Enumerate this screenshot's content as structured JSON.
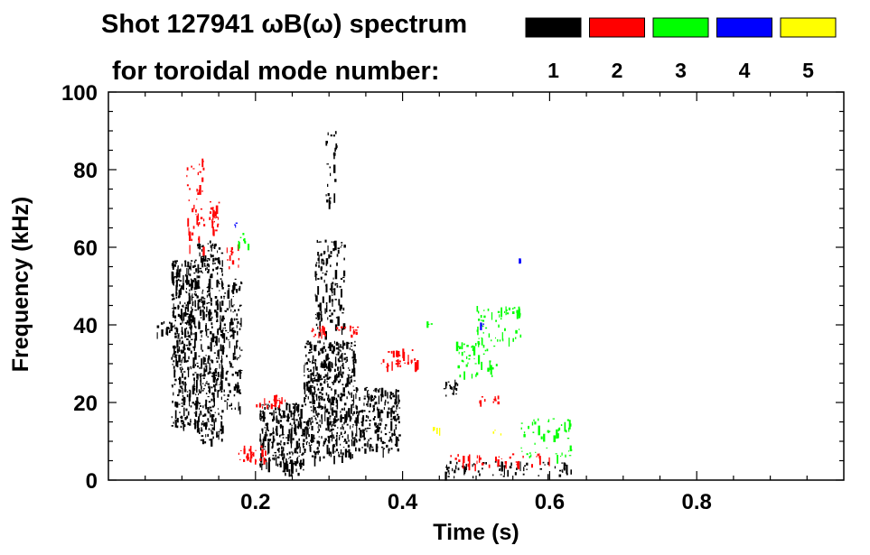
{
  "header": {
    "line1": "Shot 127941 ωB(ω) spectrum",
    "line2": "for toroidal mode number:",
    "modes": [
      {
        "label": "1",
        "color": "#000000"
      },
      {
        "label": "2",
        "color": "#ff0000"
      },
      {
        "label": "3",
        "color": "#00ff00"
      },
      {
        "label": "4",
        "color": "#0000ff"
      },
      {
        "label": "5",
        "color": "#ffff00"
      }
    ]
  },
  "chart_data": {
    "type": "heatmap",
    "title": "Shot 127941 ωB(ω) spectrum",
    "xlabel": "Time (s)",
    "ylabel": "Frequency (kHz)",
    "xlim": [
      0.0,
      1.0
    ],
    "ylim": [
      0,
      100
    ],
    "xticks": [
      0.2,
      0.4,
      0.6,
      0.8
    ],
    "xtick_labels": [
      "0.2",
      "0.4",
      "0.6",
      "0.8"
    ],
    "yticks": [
      0,
      20,
      40,
      60,
      80,
      100
    ],
    "ytick_labels": [
      "0",
      "20",
      "40",
      "60",
      "80",
      "100"
    ],
    "legend_placement": "top",
    "grid": false,
    "series": [
      {
        "name": "1",
        "color": "#000000",
        "regions": [
          {
            "t": [
              0.065,
              0.085
            ],
            "f": [
              38,
              41
            ],
            "density": 0.9
          },
          {
            "t": [
              0.085,
              0.12
            ],
            "f": [
              14,
              57
            ],
            "density": 0.85
          },
          {
            "t": [
              0.12,
              0.155
            ],
            "f": [
              10,
              62
            ],
            "density": 0.75
          },
          {
            "t": [
              0.155,
              0.18
            ],
            "f": [
              18,
              52
            ],
            "density": 0.5
          },
          {
            "t": [
              0.205,
              0.265
            ],
            "f": [
              4,
              20
            ],
            "density": 0.9
          },
          {
            "t": [
              0.265,
              0.335
            ],
            "f": [
              6,
              36
            ],
            "density": 0.88
          },
          {
            "t": [
              0.335,
              0.395
            ],
            "f": [
              8,
              24
            ],
            "density": 0.8
          },
          {
            "t": [
              0.28,
              0.32
            ],
            "f": [
              38,
              62
            ],
            "density": 0.45
          },
          {
            "t": [
              0.295,
              0.31
            ],
            "f": [
              70,
              90
            ],
            "density": 0.3
          },
          {
            "t": [
              0.455,
              0.475
            ],
            "f": [
              22,
              26
            ],
            "density": 0.8
          },
          {
            "t": [
              0.455,
              0.63
            ],
            "f": [
              1,
              5
            ],
            "density": 0.35
          },
          {
            "t": [
              0.235,
              0.265
            ],
            "f": [
              1,
              6
            ],
            "density": 0.45
          }
        ]
      },
      {
        "name": "2",
        "color": "#ff0000",
        "regions": [
          {
            "t": [
              0.135,
              0.15
            ],
            "f": [
              64,
              72
            ],
            "density": 0.8
          },
          {
            "t": [
              0.105,
              0.13
            ],
            "f": [
              60,
              84
            ],
            "density": 0.25
          },
          {
            "t": [
              0.16,
              0.18
            ],
            "f": [
              55,
              62
            ],
            "density": 0.35
          },
          {
            "t": [
              0.2,
              0.24
            ],
            "f": [
              19,
              22
            ],
            "density": 0.6
          },
          {
            "t": [
              0.175,
              0.215
            ],
            "f": [
              5,
              9
            ],
            "density": 0.55
          },
          {
            "t": [
              0.26,
              0.34
            ],
            "f": [
              37,
              40
            ],
            "density": 0.4
          },
          {
            "t": [
              0.37,
              0.42
            ],
            "f": [
              29,
              34
            ],
            "density": 0.45
          },
          {
            "t": [
              0.5,
              0.53
            ],
            "f": [
              20,
              23
            ],
            "density": 0.4
          },
          {
            "t": [
              0.46,
              0.6
            ],
            "f": [
              4,
              7
            ],
            "density": 0.3
          }
        ]
      },
      {
        "name": "3",
        "color": "#00ff00",
        "regions": [
          {
            "t": [
              0.17,
              0.19
            ],
            "f": [
              60,
              64
            ],
            "density": 0.4
          },
          {
            "t": [
              0.43,
              0.44
            ],
            "f": [
              40,
              41
            ],
            "density": 0.7
          },
          {
            "t": [
              0.5,
              0.56
            ],
            "f": [
              36,
              45
            ],
            "density": 0.35
          },
          {
            "t": [
              0.47,
              0.53
            ],
            "f": [
              27,
              36
            ],
            "density": 0.3
          },
          {
            "t": [
              0.56,
              0.63
            ],
            "f": [
              6,
              16
            ],
            "density": 0.25
          }
        ]
      },
      {
        "name": "4",
        "color": "#0000ff",
        "regions": [
          {
            "t": [
              0.17,
              0.175
            ],
            "f": [
              65,
              67
            ],
            "density": 0.6
          },
          {
            "t": [
              0.505,
              0.51
            ],
            "f": [
              40,
              41
            ],
            "density": 0.7
          },
          {
            "t": [
              0.555,
              0.56
            ],
            "f": [
              56,
              58
            ],
            "density": 0.7
          }
        ]
      },
      {
        "name": "5",
        "color": "#ffff00",
        "regions": [
          {
            "t": [
              0.43,
              0.45
            ],
            "f": [
              13,
              14
            ],
            "density": 0.6
          },
          {
            "t": [
              0.52,
              0.54
            ],
            "f": [
              12,
              13
            ],
            "density": 0.5
          }
        ]
      }
    ]
  }
}
